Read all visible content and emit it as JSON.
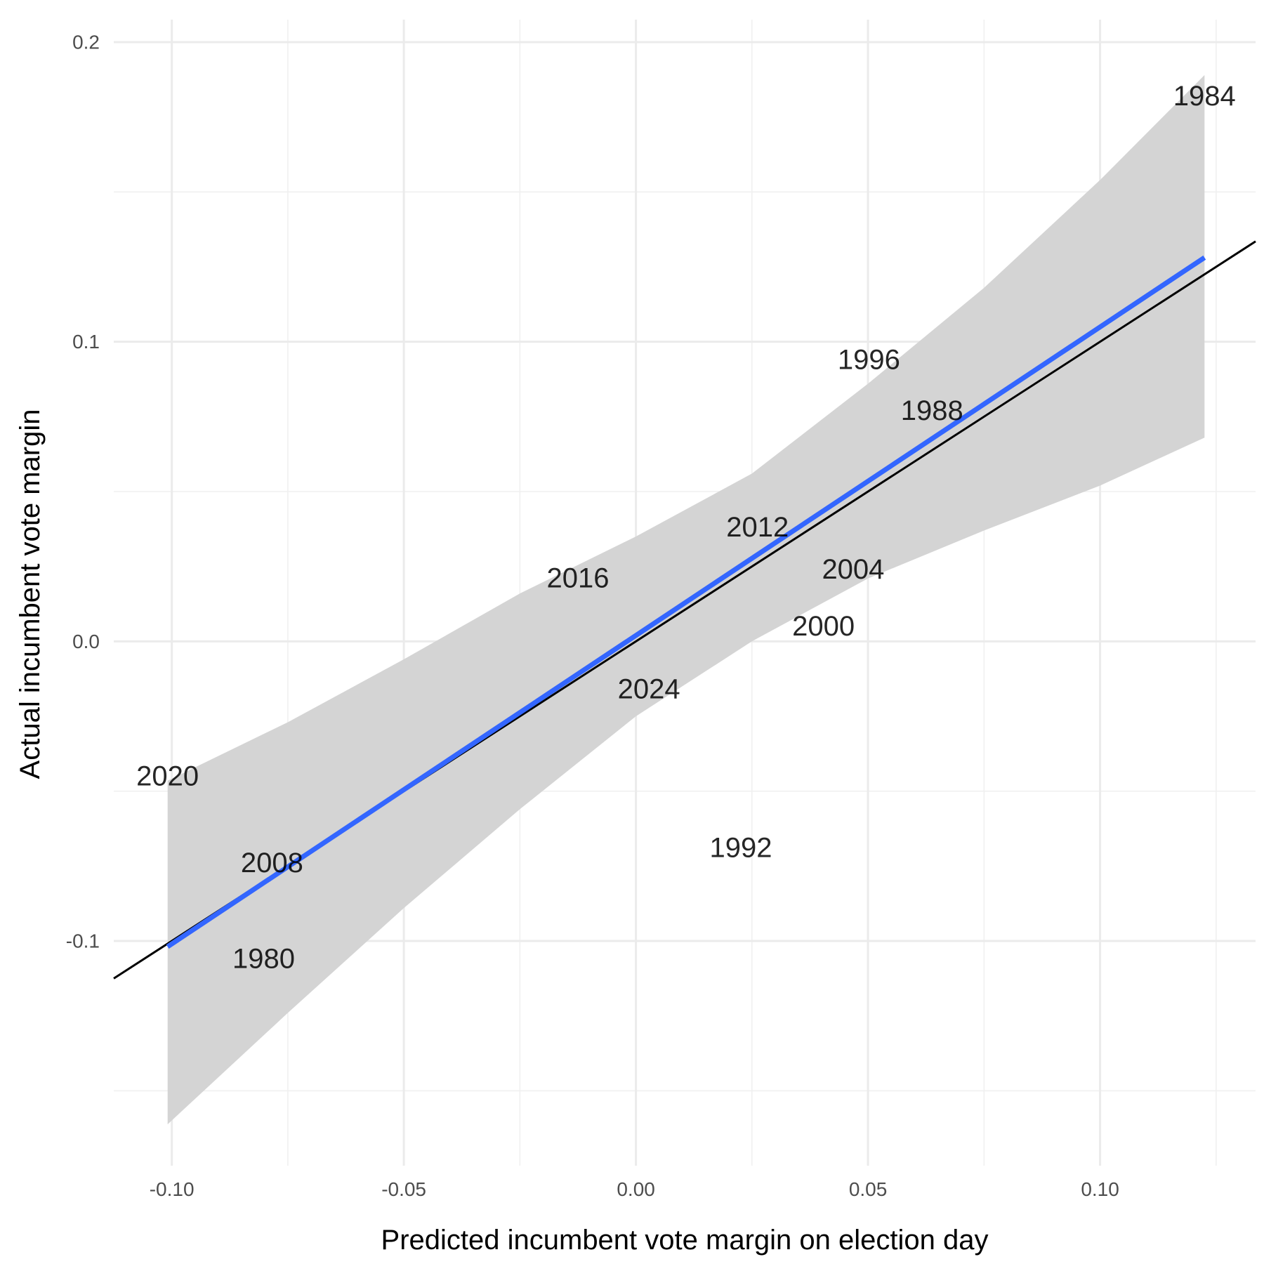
{
  "chart_data": {
    "type": "scatter",
    "title": "",
    "xlabel": "Predicted incumbent vote margin on election day",
    "ylabel": "Actual incumbent vote margin",
    "xlim": [
      -0.1125,
      0.1335
    ],
    "ylim": [
      -0.175,
      0.2075
    ],
    "x_ticks": [
      -0.1,
      -0.05,
      0.0,
      0.05,
      0.1
    ],
    "x_tick_labels": [
      "-0.10",
      "-0.05",
      "0.00",
      "0.05",
      "0.10"
    ],
    "x_minor_ticks": [
      -0.075,
      -0.025,
      0.025,
      0.075,
      0.125
    ],
    "y_ticks": [
      -0.1,
      0.0,
      0.1,
      0.2
    ],
    "y_tick_labels": [
      "-0.1",
      "0.0",
      "0.1",
      "0.2"
    ],
    "y_minor_ticks": [
      -0.15,
      -0.05,
      0.05,
      0.15
    ],
    "grid": true,
    "theme": "minimal",
    "points": [
      {
        "label": "1984",
        "x": 0.1225,
        "y": 0.182
      },
      {
        "label": "1996",
        "x": 0.0502,
        "y": 0.094
      },
      {
        "label": "1988",
        "x": 0.0638,
        "y": 0.077
      },
      {
        "label": "2012",
        "x": 0.0262,
        "y": 0.038
      },
      {
        "label": "2004",
        "x": 0.0468,
        "y": 0.024
      },
      {
        "label": "2016",
        "x": -0.0125,
        "y": 0.021
      },
      {
        "label": "2000",
        "x": 0.0404,
        "y": 0.005
      },
      {
        "label": "2024",
        "x": 0.0028,
        "y": -0.016
      },
      {
        "label": "2020",
        "x": -0.1009,
        "y": -0.045
      },
      {
        "label": "1992",
        "x": 0.0226,
        "y": -0.069
      },
      {
        "label": "2008",
        "x": -0.0784,
        "y": -0.074
      },
      {
        "label": "1980",
        "x": -0.0802,
        "y": -0.106
      }
    ],
    "reference_line": {
      "type": "identity",
      "slope": 1,
      "intercept": 0,
      "color": "#000000"
    },
    "fit_line": {
      "type": "lm",
      "x": [
        -0.1009,
        0.1225
      ],
      "y": [
        -0.1019,
        0.1281
      ],
      "color": "#3366FF"
    },
    "confidence_band": {
      "color": "#d4d4d4",
      "x": [
        -0.1009,
        -0.075,
        -0.05,
        -0.025,
        0.0,
        0.025,
        0.05,
        0.075,
        0.1,
        0.1225
      ],
      "upper": [
        -0.0465,
        -0.027,
        -0.006,
        0.016,
        0.035,
        0.056,
        0.086,
        0.118,
        0.154,
        0.189
      ],
      "lower": [
        -0.1612,
        -0.124,
        -0.089,
        -0.056,
        -0.025,
        0.0,
        0.021,
        0.037,
        0.052,
        0.068
      ]
    }
  }
}
